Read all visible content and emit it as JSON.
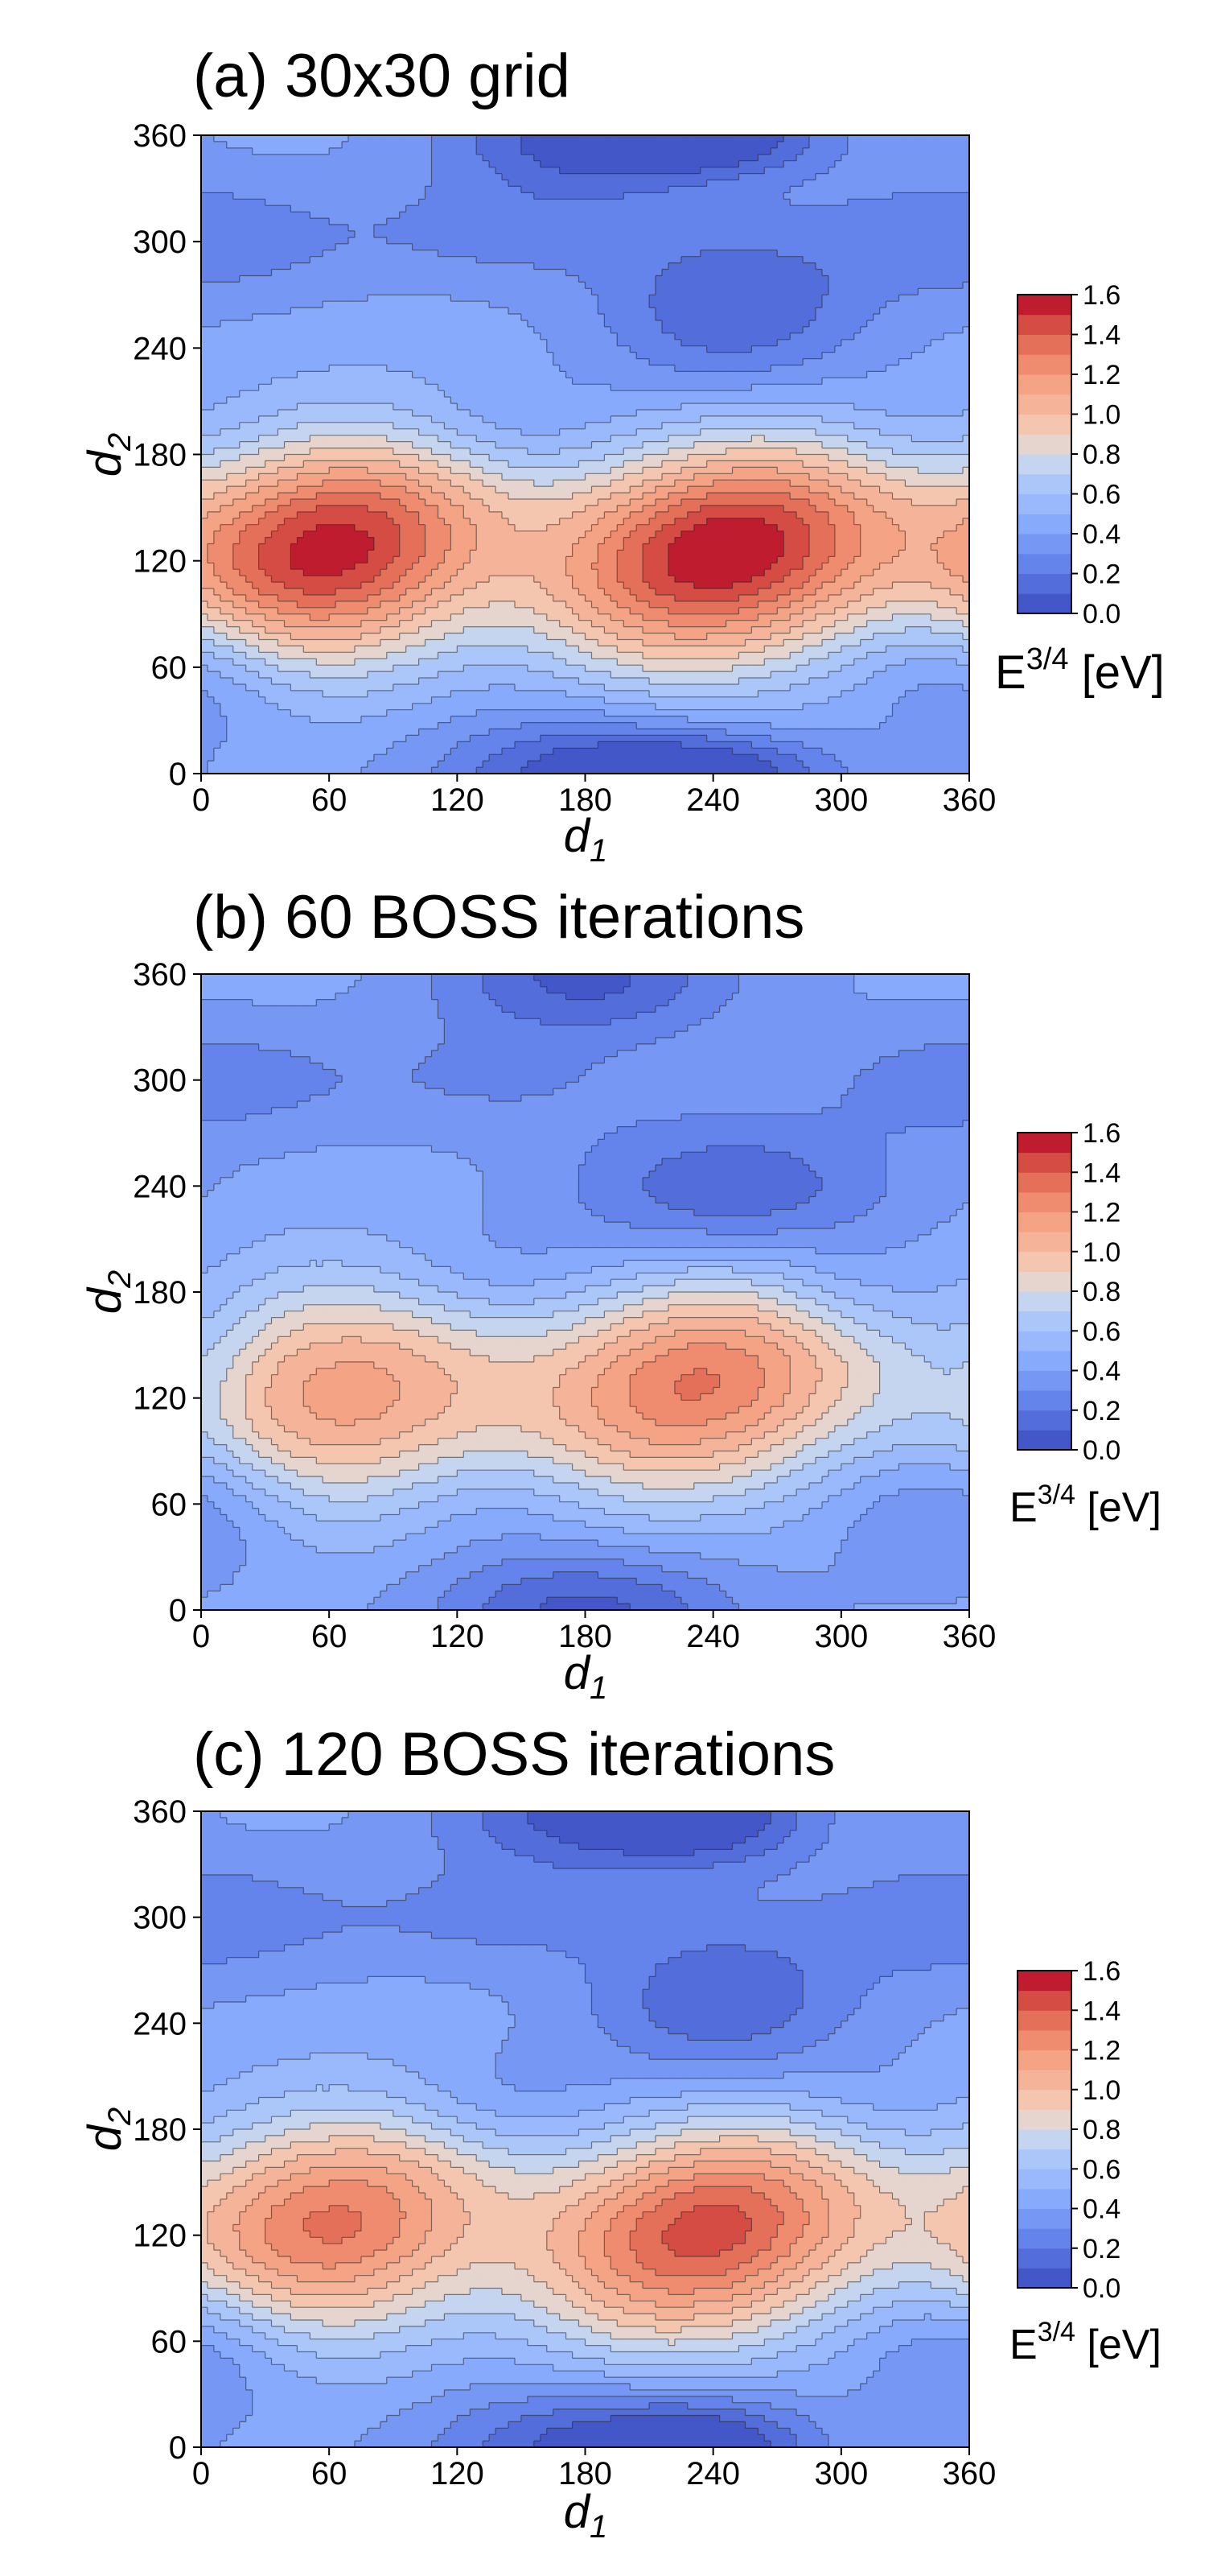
{
  "chart_data": [
    {
      "type": "contour",
      "title": "(a) 30x30 grid",
      "xlabel": "d",
      "xlabel_sub": "1",
      "ylabel": "d",
      "ylabel_sub": "2",
      "xlim": [
        0,
        360
      ],
      "ylim": [
        0,
        360
      ],
      "xticks": [
        "0",
        "60",
        "120",
        "180",
        "240",
        "300",
        "360"
      ],
      "yticks": [
        "0",
        "60",
        "120",
        "180",
        "240",
        "300",
        "360"
      ],
      "colorbar": {
        "label_base": "E",
        "label_sup": "3/4",
        "label_unit": " [eV]",
        "ticks": [
          "0.0",
          "0.2",
          "0.4",
          "0.6",
          "0.8",
          "1.0",
          "1.2",
          "1.4",
          "1.6"
        ],
        "range": [
          0,
          1.6
        ],
        "levels": 16
      },
      "colormap": "coolwarm",
      "grid": false,
      "features": [
        {
          "kind": "max",
          "d1": 60,
          "d2": 125,
          "value": 1.55,
          "w1": 55,
          "w2": 48,
          "tilt": -0.35
        },
        {
          "kind": "max",
          "d1": 245,
          "d2": 125,
          "value": 1.6,
          "w1": 58,
          "w2": 46,
          "tilt": -0.35
        },
        {
          "kind": "min",
          "d1": 135,
          "d2": 195,
          "value": -0.18,
          "w1": 40,
          "w2": 22,
          "tilt": 0
        },
        {
          "kind": "min",
          "d1": 140,
          "d2": 305,
          "value": -0.15,
          "w1": 48,
          "w2": 20,
          "tilt": 0
        },
        {
          "kind": "min",
          "d1": 330,
          "d2": 195,
          "value": -0.12,
          "w1": 40,
          "w2": 22,
          "tilt": 0
        },
        {
          "kind": "min",
          "d1": 345,
          "d2": 305,
          "value": -0.12,
          "w1": 45,
          "w2": 25,
          "tilt": 0
        },
        {
          "kind": "min",
          "d1": 5,
          "d2": 60,
          "value": -0.16,
          "w1": 35,
          "w2": 30,
          "tilt": 0
        },
        {
          "kind": "min",
          "d1": 350,
          "d2": 60,
          "value": -0.16,
          "w1": 35,
          "w2": 30,
          "tilt": 0
        },
        {
          "kind": "min",
          "d1": 15,
          "d2": 300,
          "value": -0.1,
          "w1": 45,
          "w2": 22,
          "tilt": 0
        },
        {
          "kind": "min",
          "d1": 155,
          "d2": 60,
          "value": -0.06,
          "w1": 35,
          "w2": 25,
          "tilt": 0
        },
        {
          "kind": "max",
          "d1": 250,
          "d2": 260,
          "value": 0.1,
          "w1": 45,
          "w2": 35,
          "tilt": 0
        },
        {
          "kind": "max",
          "d1": 180,
          "d2": 0,
          "value": 0.05,
          "w1": 50,
          "w2": 25,
          "tilt": 0
        },
        {
          "kind": "max",
          "d1": 240,
          "d2": 360,
          "value": 0.06,
          "w1": 40,
          "w2": 15,
          "tilt": 0
        }
      ],
      "baseline": 0.42
    },
    {
      "type": "contour",
      "title": "(b) 60 BOSS iterations",
      "xlabel": "d",
      "xlabel_sub": "1",
      "ylabel": "d",
      "ylabel_sub": "2",
      "xlim": [
        0,
        360
      ],
      "ylim": [
        0,
        360
      ],
      "xticks": [
        "0",
        "60",
        "120",
        "180",
        "240",
        "300",
        "360"
      ],
      "yticks": [
        "0",
        "60",
        "120",
        "180",
        "240",
        "300",
        "360"
      ],
      "colorbar": {
        "label_base": "E",
        "label_sup": "3/4",
        "label_unit": " [eV]",
        "ticks": [
          "0.0",
          "0.2",
          "0.4",
          "0.6",
          "0.8",
          "1.0",
          "1.2",
          "1.4",
          "1.6"
        ],
        "range": [
          0,
          1.6
        ],
        "levels": 16
      },
      "colormap": "coolwarm",
      "grid": false,
      "features": [
        {
          "kind": "max",
          "d1": 65,
          "d2": 122,
          "value": 1.15,
          "w1": 60,
          "w2": 50,
          "tilt": -0.3
        },
        {
          "kind": "max",
          "d1": 235,
          "d2": 128,
          "value": 1.3,
          "w1": 55,
          "w2": 46,
          "tilt": -0.3
        },
        {
          "kind": "min",
          "d1": 130,
          "d2": 188,
          "value": -0.18,
          "w1": 40,
          "w2": 26,
          "tilt": 0
        },
        {
          "kind": "min",
          "d1": 135,
          "d2": 300,
          "value": -0.12,
          "w1": 50,
          "w2": 22,
          "tilt": 0
        },
        {
          "kind": "min",
          "d1": 305,
          "d2": 180,
          "value": -0.14,
          "w1": 30,
          "w2": 22,
          "tilt": 0
        },
        {
          "kind": "min",
          "d1": 345,
          "d2": 300,
          "value": -0.1,
          "w1": 45,
          "w2": 22,
          "tilt": 0
        },
        {
          "kind": "min",
          "d1": 5,
          "d2": 60,
          "value": -0.14,
          "w1": 35,
          "w2": 30,
          "tilt": 0
        },
        {
          "kind": "min",
          "d1": 345,
          "d2": 60,
          "value": -0.17,
          "w1": 40,
          "w2": 30,
          "tilt": 0
        },
        {
          "kind": "min",
          "d1": 15,
          "d2": 300,
          "value": -0.1,
          "w1": 45,
          "w2": 22,
          "tilt": 0
        },
        {
          "kind": "min",
          "d1": 140,
          "d2": 60,
          "value": -0.1,
          "w1": 38,
          "w2": 22,
          "tilt": 0
        },
        {
          "kind": "max",
          "d1": 250,
          "d2": 235,
          "value": 0.08,
          "w1": 55,
          "w2": 30,
          "tilt": 0
        },
        {
          "kind": "max",
          "d1": 180,
          "d2": 0,
          "value": 0.05,
          "w1": 50,
          "w2": 25,
          "tilt": 0
        },
        {
          "kind": "max",
          "d1": 360,
          "d2": 140,
          "value": 0.3,
          "w1": 20,
          "w2": 35,
          "tilt": 0
        }
      ],
      "baseline": 0.42
    },
    {
      "type": "contour",
      "title": "(c) 120 BOSS iterations",
      "xlabel": "d",
      "xlabel_sub": "1",
      "ylabel": "d",
      "ylabel_sub": "2",
      "xlim": [
        0,
        360
      ],
      "ylim": [
        0,
        360
      ],
      "xticks": [
        "0",
        "60",
        "120",
        "180",
        "240",
        "300",
        "360"
      ],
      "yticks": [
        "0",
        "60",
        "120",
        "180",
        "240",
        "300",
        "360"
      ],
      "colorbar": {
        "label_base": "E",
        "label_sup": "3/4",
        "label_unit": " [eV]",
        "ticks": [
          "0.0",
          "0.2",
          "0.4",
          "0.6",
          "0.8",
          "1.0",
          "1.2",
          "1.4",
          "1.6"
        ],
        "range": [
          0,
          1.6
        ],
        "levels": 16
      },
      "colormap": "coolwarm",
      "grid": false,
      "features": [
        {
          "kind": "max",
          "d1": 60,
          "d2": 125,
          "value": 1.32,
          "w1": 55,
          "w2": 48,
          "tilt": -0.35
        },
        {
          "kind": "max",
          "d1": 237,
          "d2": 122,
          "value": 1.45,
          "w1": 56,
          "w2": 46,
          "tilt": -0.35
        },
        {
          "kind": "min",
          "d1": 135,
          "d2": 195,
          "value": -0.18,
          "w1": 40,
          "w2": 24,
          "tilt": 0
        },
        {
          "kind": "min",
          "d1": 135,
          "d2": 300,
          "value": -0.14,
          "w1": 48,
          "w2": 20,
          "tilt": 0
        },
        {
          "kind": "min",
          "d1": 315,
          "d2": 192,
          "value": -0.12,
          "w1": 35,
          "w2": 22,
          "tilt": 0
        },
        {
          "kind": "min",
          "d1": 345,
          "d2": 300,
          "value": -0.12,
          "w1": 45,
          "w2": 25,
          "tilt": 0
        },
        {
          "kind": "min",
          "d1": 5,
          "d2": 60,
          "value": -0.16,
          "w1": 35,
          "w2": 30,
          "tilt": 0
        },
        {
          "kind": "min",
          "d1": 350,
          "d2": 60,
          "value": -0.16,
          "w1": 35,
          "w2": 30,
          "tilt": 0
        },
        {
          "kind": "min",
          "d1": 15,
          "d2": 300,
          "value": -0.1,
          "w1": 45,
          "w2": 22,
          "tilt": 0
        },
        {
          "kind": "min",
          "d1": 150,
          "d2": 60,
          "value": -0.06,
          "w1": 35,
          "w2": 25,
          "tilt": 0
        },
        {
          "kind": "max",
          "d1": 245,
          "d2": 250,
          "value": 0.1,
          "w1": 45,
          "w2": 35,
          "tilt": 0
        },
        {
          "kind": "max",
          "d1": 180,
          "d2": 0,
          "value": 0.05,
          "w1": 50,
          "w2": 25,
          "tilt": 0
        },
        {
          "kind": "max",
          "d1": 240,
          "d2": 360,
          "value": 0.08,
          "w1": 35,
          "w2": 20,
          "tilt": 0
        }
      ],
      "baseline": 0.42
    }
  ]
}
